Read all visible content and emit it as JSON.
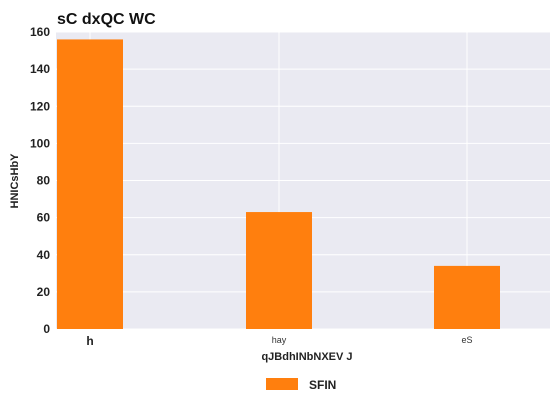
{
  "chart_data": {
    "type": "bar",
    "title": "sC dxQC WC",
    "xlabel": "qJBdhINbNXEV J",
    "ylabel": "HNICsHbY",
    "categories": [
      "h",
      "hay",
      "eS"
    ],
    "series": [
      {
        "name": "SFIN",
        "values": [
          156,
          63,
          34
        ]
      }
    ],
    "ylim": [
      0,
      160
    ],
    "yticks": [
      0,
      20,
      40,
      60,
      80,
      100,
      120,
      140,
      160
    ],
    "grid": true,
    "legend_position": "bottom-center",
    "colors": {
      "bar": "#ff7f0e",
      "plot_background": "#eaeaf2",
      "grid": "#ffffff"
    }
  }
}
